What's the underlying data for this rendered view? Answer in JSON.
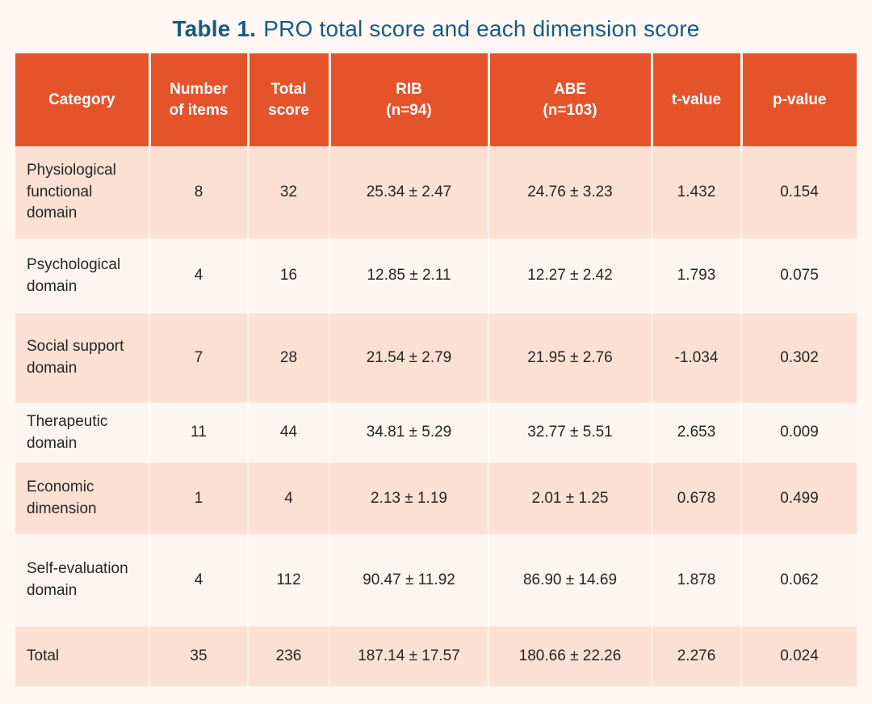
{
  "title": {
    "prefix": "Table 1.",
    "rest": "PRO total score and each dimension score"
  },
  "colors": {
    "header_bg": "#E5532B",
    "row_pink": "#FCE0D3",
    "row_white": "#FDF5F2",
    "page_bg": "#FEF7F4",
    "title_text": "#1A5A80",
    "body_text": "#262626",
    "header_text": "#FFFFFF"
  },
  "table": {
    "columns": [
      "Category",
      "Number\nof items",
      "Total\nscore",
      "RIB\n(n=94)",
      "ABE\n(n=103)",
      "t-value",
      "p-value"
    ],
    "rows": [
      {
        "category": "Physiological functional domain",
        "items": "8",
        "total": "32",
        "rib": "25.34 ± 2.47",
        "abe": "24.76 ± 3.23",
        "t": "1.432",
        "p": "0.154"
      },
      {
        "category": "Psychological domain",
        "items": "4",
        "total": "16",
        "rib": "12.85 ± 2.11",
        "abe": "12.27 ± 2.42",
        "t": "1.793",
        "p": "0.075"
      },
      {
        "category": "Social support domain",
        "items": "7",
        "total": "28",
        "rib": "21.54 ± 2.79",
        "abe": "21.95 ± 2.76",
        "t": "-1.034",
        "p": "0.302"
      },
      {
        "category": "Therapeutic domain",
        "items": "11",
        "total": "44",
        "rib": "34.81 ± 5.29",
        "abe": "32.77 ± 5.51",
        "t": "2.653",
        "p": "0.009"
      },
      {
        "category": "Economic dimension",
        "items": "1",
        "total": "4",
        "rib": "2.13 ± 1.19",
        "abe": "2.01 ± 1.25",
        "t": "0.678",
        "p": "0.499"
      },
      {
        "category": "Self-evaluation domain",
        "items": "4",
        "total": "112",
        "rib": "90.47 ± 11.92",
        "abe": "86.90 ± 14.69",
        "t": "1.878",
        "p": "0.062"
      },
      {
        "category": "Total",
        "items": "35",
        "total": "236",
        "rib": "187.14 ± 17.57",
        "abe": "180.66 ± 22.26",
        "t": "2.276",
        "p": "0.024"
      }
    ]
  },
  "chart_data": {
    "type": "table",
    "title": "Table 1. PRO total score and each dimension score",
    "columns": [
      "Category",
      "Number of items",
      "Total score",
      "RIB (n=94)",
      "ABE (n=103)",
      "t-value",
      "p-value"
    ],
    "rows": [
      [
        "Physiological functional domain",
        8,
        32,
        "25.34 ± 2.47",
        "24.76 ± 3.23",
        1.432,
        0.154
      ],
      [
        "Psychological domain",
        4,
        16,
        "12.85 ± 2.11",
        "12.27 ± 2.42",
        1.793,
        0.075
      ],
      [
        "Social support domain",
        7,
        28,
        "21.54 ± 2.79",
        "21.95 ± 2.76",
        -1.034,
        0.302
      ],
      [
        "Therapeutic domain",
        11,
        44,
        "34.81 ± 5.29",
        "32.77 ± 5.51",
        2.653,
        0.009
      ],
      [
        "Economic dimension",
        1,
        4,
        "2.13 ± 1.19",
        "2.01 ± 1.25",
        0.678,
        0.499
      ],
      [
        "Self-evaluation domain",
        4,
        112,
        "90.47 ± 11.92",
        "86.90 ± 14.69",
        1.878,
        0.062
      ],
      [
        "Total",
        35,
        236,
        "187.14 ± 17.57",
        "180.66 ± 22.26",
        2.276,
        0.024
      ]
    ]
  }
}
